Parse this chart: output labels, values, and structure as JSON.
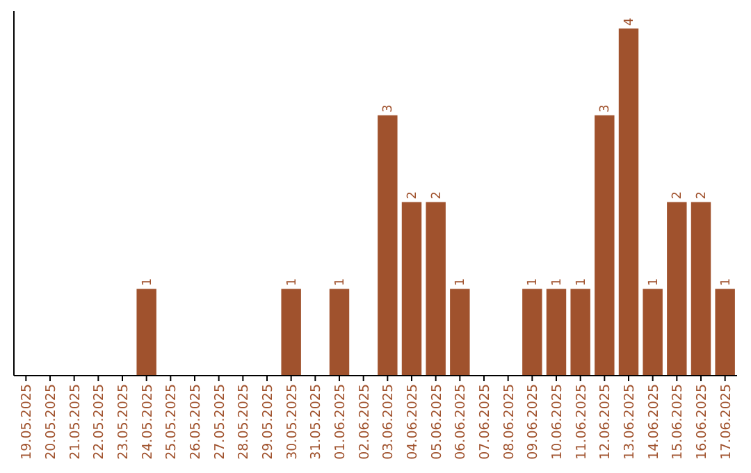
{
  "chart_data": {
    "type": "bar",
    "categories": [
      "19.05.2025",
      "20.05.2025",
      "21.05.2025",
      "22.05.2025",
      "23.05.2025",
      "24.05.2025",
      "25.05.2025",
      "26.05.2025",
      "27.05.2025",
      "28.05.2025",
      "29.05.2025",
      "30.05.2025",
      "31.05.2025",
      "01.06.2025",
      "02.06.2025",
      "03.06.2025",
      "04.06.2025",
      "05.06.2025",
      "06.06.2025",
      "07.06.2025",
      "08.06.2025",
      "09.06.2025",
      "10.06.2025",
      "11.06.2025",
      "12.06.2025",
      "13.06.2025",
      "14.06.2025",
      "15.06.2025",
      "16.06.2025",
      "17.06.2025"
    ],
    "values": [
      0,
      0,
      0,
      0,
      0,
      1,
      0,
      0,
      0,
      0,
      0,
      1,
      0,
      1,
      0,
      3,
      2,
      2,
      1,
      0,
      0,
      1,
      1,
      1,
      3,
      4,
      1,
      2,
      2,
      1
    ],
    "value_labels": [
      null,
      null,
      null,
      null,
      null,
      "1",
      null,
      null,
      null,
      null,
      null,
      "1",
      null,
      "1",
      null,
      "3",
      "2",
      "2",
      "1",
      null,
      null,
      "1",
      "1",
      "1",
      "3",
      "4",
      "1",
      "2",
      "2",
      "1"
    ],
    "color": "#a0522d",
    "tick_labels": "x"
  }
}
